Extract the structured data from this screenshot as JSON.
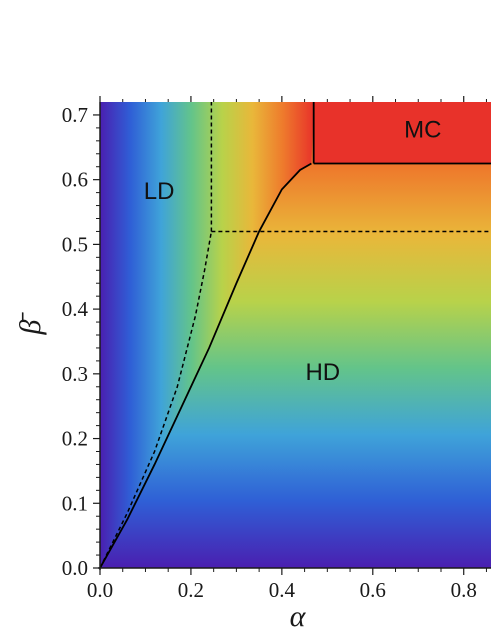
{
  "chart_data": {
    "type": "heatmap",
    "xlabel": "α",
    "ylabel": "β̄",
    "xlim": [
      0,
      0.86
    ],
    "ylim": [
      0,
      0.72
    ],
    "x_ticks": [
      {
        "value": 0.0,
        "label": "0.0"
      },
      {
        "value": 0.2,
        "label": "0.2"
      },
      {
        "value": 0.4,
        "label": "0.4"
      },
      {
        "value": 0.6,
        "label": "0.6"
      },
      {
        "value": 0.8,
        "label": "0.8"
      }
    ],
    "y_ticks": [
      {
        "value": 0.0,
        "label": "0.0"
      },
      {
        "value": 0.1,
        "label": "0.1"
      },
      {
        "value": 0.2,
        "label": "0.2"
      },
      {
        "value": 0.3,
        "label": "0.3"
      },
      {
        "value": 0.4,
        "label": "0.4"
      },
      {
        "value": 0.5,
        "label": "0.5"
      },
      {
        "value": 0.6,
        "label": "0.6"
      },
      {
        "value": 0.7,
        "label": "0.7"
      }
    ],
    "colormap": [
      "#4a1fb0",
      "#2f5fd6",
      "#3fa3d9",
      "#63c48a",
      "#b8d24a",
      "#e9b73a",
      "#ee7a2c",
      "#e8322a"
    ],
    "region_labels": [
      {
        "text": "LD",
        "x": 0.13,
        "y": 0.58
      },
      {
        "text": "MC",
        "x": 0.71,
        "y": 0.675
      },
      {
        "text": "HD",
        "x": 0.49,
        "y": 0.3
      }
    ],
    "boundaries": [
      {
        "name": "solid",
        "style": "solid",
        "points": [
          [
            0.0,
            0.0
          ],
          [
            0.06,
            0.075
          ],
          [
            0.12,
            0.16
          ],
          [
            0.18,
            0.25
          ],
          [
            0.24,
            0.34
          ],
          [
            0.3,
            0.44
          ],
          [
            0.35,
            0.52
          ],
          [
            0.4,
            0.585
          ],
          [
            0.44,
            0.615
          ],
          [
            0.465,
            0.625
          ]
        ]
      },
      {
        "name": "solid-vertical",
        "style": "solid",
        "points": [
          [
            0.47,
            0.625
          ],
          [
            0.47,
            0.72
          ]
        ]
      },
      {
        "name": "solid-horizontal",
        "style": "solid",
        "points": [
          [
            0.47,
            0.625
          ],
          [
            0.86,
            0.625
          ]
        ]
      },
      {
        "name": "dashed",
        "style": "dashed",
        "points": [
          [
            0.0,
            0.0
          ],
          [
            0.06,
            0.085
          ],
          [
            0.12,
            0.18
          ],
          [
            0.17,
            0.28
          ],
          [
            0.21,
            0.39
          ],
          [
            0.23,
            0.46
          ],
          [
            0.24,
            0.5
          ],
          [
            0.245,
            0.52
          ]
        ]
      },
      {
        "name": "dashed-vertical",
        "style": "dashed",
        "points": [
          [
            0.245,
            0.52
          ],
          [
            0.245,
            0.72
          ]
        ]
      },
      {
        "name": "dashed-horizontal",
        "style": "dashed",
        "points": [
          [
            0.245,
            0.52
          ],
          [
            0.86,
            0.52
          ]
        ]
      }
    ]
  }
}
